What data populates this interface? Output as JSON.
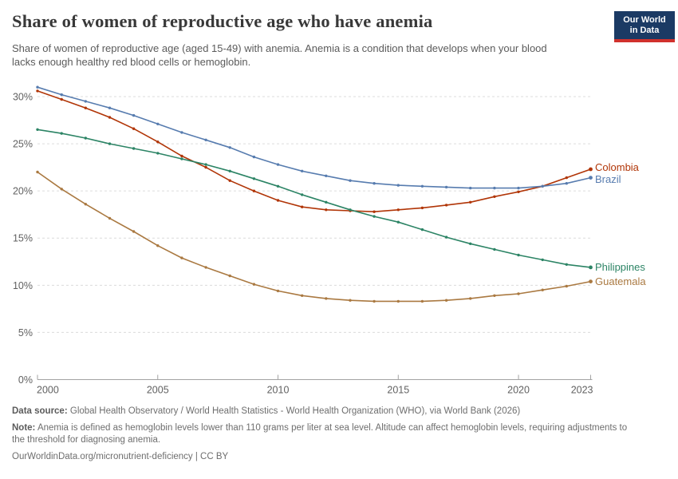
{
  "header": {
    "title": "Share of women of reproductive age who have anemia",
    "subtitle": "Share of women of reproductive age (aged 15-49) with anemia. Anemia is a condition that develops when your blood lacks enough healthy red blood cells or hemoglobin.",
    "logo": {
      "line1": "Our World",
      "line2": "in Data",
      "bg_color": "#1b3a64",
      "stripe_color": "#d0312d"
    }
  },
  "chart_data": {
    "type": "line",
    "title": "Share of women of reproductive age who have anemia",
    "xlabel": "",
    "ylabel": "",
    "x": [
      2000,
      2001,
      2002,
      2003,
      2004,
      2005,
      2006,
      2007,
      2008,
      2009,
      2010,
      2011,
      2012,
      2013,
      2014,
      2015,
      2016,
      2017,
      2018,
      2019,
      2020,
      2021,
      2022,
      2023
    ],
    "x_ticks": [
      2000,
      2005,
      2010,
      2015,
      2020,
      2023
    ],
    "y_ticks": [
      0,
      5,
      10,
      15,
      20,
      25,
      30
    ],
    "y_tick_suffix": "%",
    "ylim": [
      0,
      32
    ],
    "grid": "horizontal-dashed",
    "legend_position": "right-of-line-ends",
    "series": [
      {
        "name": "Colombia",
        "color": "#B13507",
        "values": [
          30.6,
          29.7,
          28.8,
          27.8,
          26.6,
          25.2,
          23.7,
          22.5,
          21.1,
          20.0,
          19.0,
          18.3,
          18.0,
          17.9,
          17.8,
          18.0,
          18.2,
          18.5,
          18.8,
          19.4,
          19.9,
          20.5,
          21.4,
          22.3
        ]
      },
      {
        "name": "Brazil",
        "color": "#577CAF",
        "values": [
          31.0,
          30.2,
          29.5,
          28.8,
          28.0,
          27.1,
          26.2,
          25.4,
          24.6,
          23.6,
          22.8,
          22.1,
          21.6,
          21.1,
          20.8,
          20.6,
          20.5,
          20.4,
          20.3,
          20.3,
          20.3,
          20.5,
          20.8,
          21.4
        ]
      },
      {
        "name": "Philippines",
        "color": "#2C8465",
        "values": [
          26.5,
          26.1,
          25.6,
          25.0,
          24.5,
          24.0,
          23.4,
          22.8,
          22.1,
          21.3,
          20.5,
          19.6,
          18.8,
          18.0,
          17.3,
          16.7,
          15.9,
          15.1,
          14.4,
          13.8,
          13.2,
          12.7,
          12.2,
          11.9
        ]
      },
      {
        "name": "Guatemala",
        "color": "#AA7941",
        "values": [
          22.0,
          20.2,
          18.6,
          17.1,
          15.7,
          14.2,
          12.9,
          11.9,
          11.0,
          10.1,
          9.4,
          8.9,
          8.6,
          8.4,
          8.3,
          8.3,
          8.3,
          8.4,
          8.6,
          8.9,
          9.1,
          9.5,
          9.9,
          10.4
        ]
      }
    ]
  },
  "footer": {
    "data_source_label": "Data source:",
    "data_source": "Global Health Observatory / World Health Statistics - World Health Organization (WHO), via World Bank (2026)",
    "note_label": "Note:",
    "note": "Anemia is defined as hemoglobin levels lower than 110 grams per liter at sea level. Altitude can affect hemoglobin levels, requiring adjustments to the threshold for diagnosing anemia.",
    "license": "OurWorldinData.org/micronutrient-deficiency | CC BY"
  }
}
